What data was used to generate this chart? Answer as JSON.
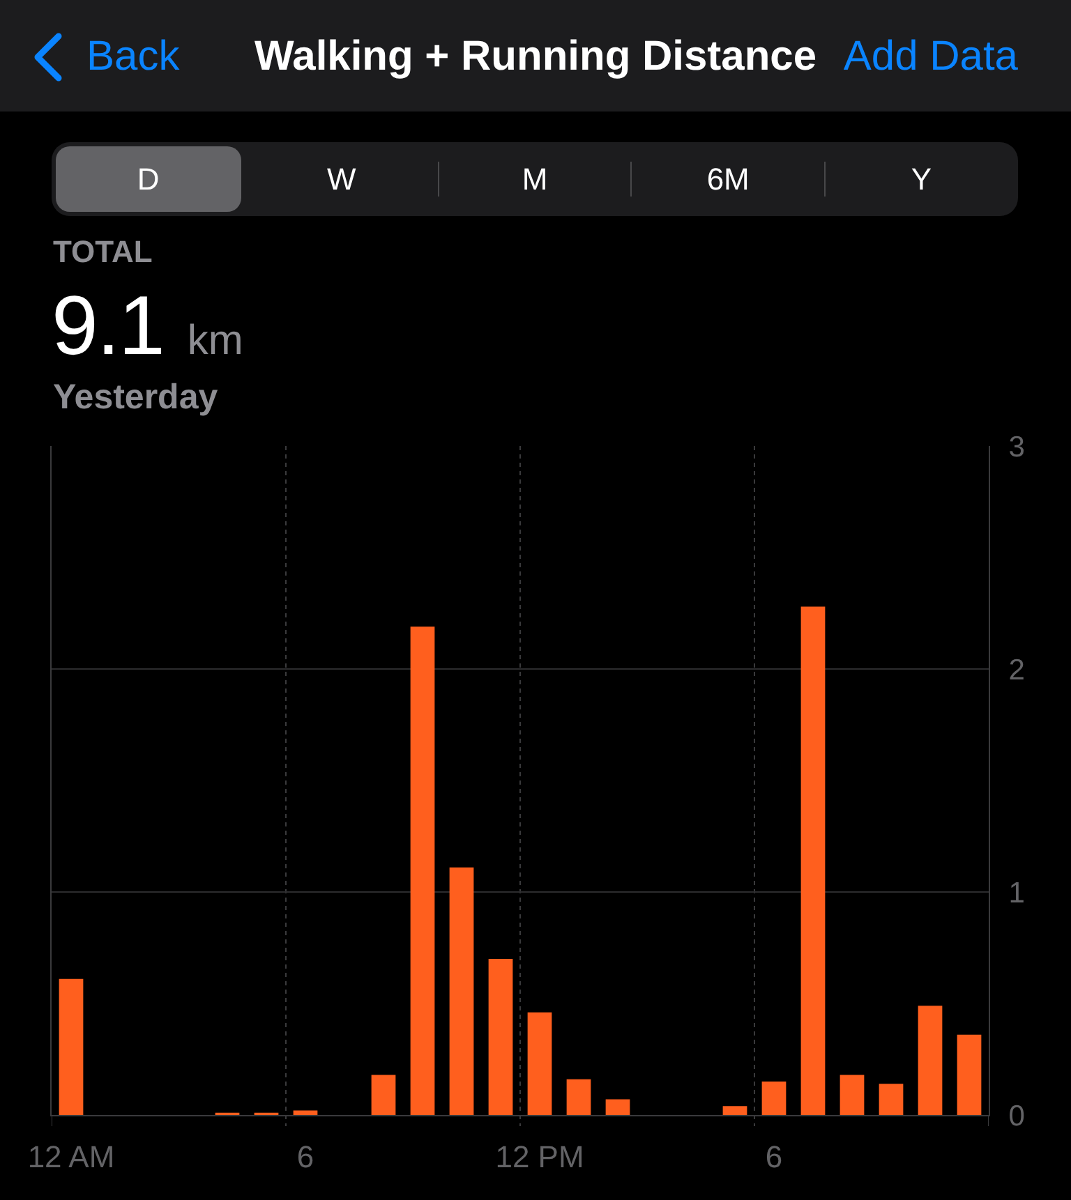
{
  "chart_data": {
    "type": "bar",
    "title": "Walking + Running Distance",
    "annotations": [
      "Back",
      "Add Data",
      "D",
      "W",
      "M",
      "6M",
      "Y",
      "TOTAL",
      "9.1",
      "km",
      "Yesterday"
    ],
    "categories": [
      "12 AM",
      null,
      null,
      null,
      null,
      null,
      "6",
      null,
      null,
      null,
      null,
      null,
      "12 PM",
      null,
      null,
      null,
      null,
      null,
      "6",
      null,
      null,
      null,
      null,
      null
    ],
    "values": [
      0.61,
      null,
      null,
      null,
      0.01,
      0.01,
      0.02,
      null,
      0.18,
      2.19,
      1.11,
      0.7,
      0.46,
      0.16,
      0.07,
      null,
      null,
      0.04,
      0.15,
      2.28,
      0.18,
      0.14,
      0.49,
      0.36
    ],
    "color": "#ff5f1e",
    "ylim": [
      0,
      3
    ],
    "yticks": [
      0,
      1,
      2,
      3
    ],
    "grid": true
  }
}
